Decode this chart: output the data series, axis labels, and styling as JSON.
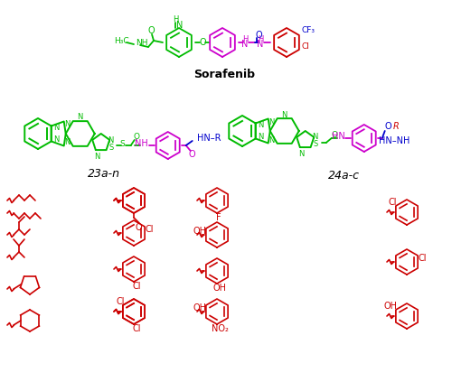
{
  "sorafenib_label": "Sorafenib",
  "compound_23": "23a-n",
  "compound_24": "24a-c",
  "bg_color": "#ffffff",
  "green": "#00bb00",
  "magenta": "#cc00cc",
  "blue": "#0000cc",
  "red": "#cc0000",
  "black": "#000000",
  "figw": 5.0,
  "figh": 4.23,
  "dpi": 100
}
